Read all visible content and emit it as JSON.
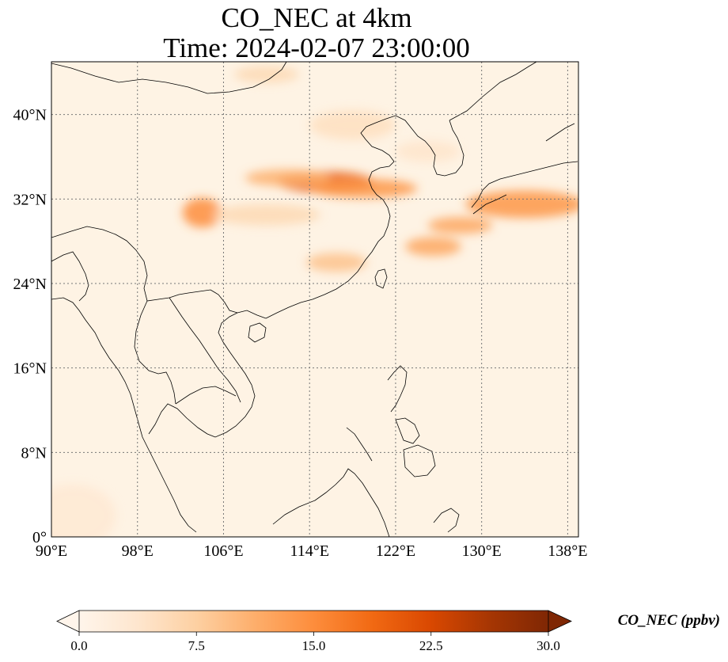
{
  "title": {
    "line1": "CO_NEC at 4km",
    "line2": "Time: 2024-02-07 23:00:00"
  },
  "map": {
    "lon_range": [
      90,
      139
    ],
    "lat_range": [
      0,
      45
    ],
    "gridlines": true,
    "lon_ticks": [
      {
        "value": 90,
        "label": "90°E"
      },
      {
        "value": 98,
        "label": "98°E"
      },
      {
        "value": 106,
        "label": "106°E"
      },
      {
        "value": 114,
        "label": "114°E"
      },
      {
        "value": 122,
        "label": "122°E"
      },
      {
        "value": 130,
        "label": "130°E"
      },
      {
        "value": 138,
        "label": "138°E"
      }
    ],
    "lat_ticks": [
      {
        "value": 0,
        "label": "0°"
      },
      {
        "value": 8,
        "label": "8°N"
      },
      {
        "value": 16,
        "label": "16°N"
      },
      {
        "value": 24,
        "label": "24°N"
      },
      {
        "value": 32,
        "label": "32°N"
      },
      {
        "value": 40,
        "label": "40°N"
      }
    ],
    "background_color": "#fef3e4",
    "plumes": [
      {
        "lon": 115.5,
        "lat": 33.6,
        "rlon": 4.5,
        "rlat": 1.0,
        "value": 20
      },
      {
        "lon": 119.0,
        "lat": 33.0,
        "rlon": 5.0,
        "rlat": 0.9,
        "value": 14
      },
      {
        "lon": 112.0,
        "lat": 34.0,
        "rlon": 4.0,
        "rlat": 0.8,
        "value": 11
      },
      {
        "lon": 104.0,
        "lat": 30.7,
        "rlon": 1.8,
        "rlat": 1.4,
        "value": 15
      },
      {
        "lon": 134.0,
        "lat": 31.5,
        "rlon": 5.5,
        "rlat": 1.3,
        "value": 14
      },
      {
        "lon": 128.0,
        "lat": 29.5,
        "rlon": 3.0,
        "rlat": 0.8,
        "value": 12
      },
      {
        "lon": 125.5,
        "lat": 27.5,
        "rlon": 2.6,
        "rlat": 0.9,
        "value": 12
      },
      {
        "lon": 116.5,
        "lat": 26.0,
        "rlon": 2.8,
        "rlat": 0.9,
        "value": 9
      },
      {
        "lon": 110.0,
        "lat": 30.5,
        "rlon": 5.0,
        "rlat": 1.0,
        "value": 6
      },
      {
        "lon": 118.0,
        "lat": 39.0,
        "rlon": 4.0,
        "rlat": 1.4,
        "value": 5
      },
      {
        "lon": 110.0,
        "lat": 43.8,
        "rlon": 3.0,
        "rlat": 0.8,
        "value": 6
      },
      {
        "lon": 125.0,
        "lat": 36.5,
        "rlon": 3.0,
        "rlat": 1.0,
        "value": 4
      },
      {
        "lon": 92.0,
        "lat": 2.0,
        "rlon": 4.0,
        "rlat": 3.0,
        "value": 3
      }
    ]
  },
  "colorbar": {
    "label": "CO_NEC (ppbv)",
    "min": 0,
    "max": 30,
    "ticks": [
      "0.0",
      "7.5",
      "15.0",
      "22.5",
      "30.0"
    ],
    "colors": [
      "#fff5eb",
      "#fee6ce",
      "#fdd0a2",
      "#fdae6b",
      "#fd8d3c",
      "#f16913",
      "#d94801",
      "#a63603",
      "#7f2704"
    ]
  }
}
